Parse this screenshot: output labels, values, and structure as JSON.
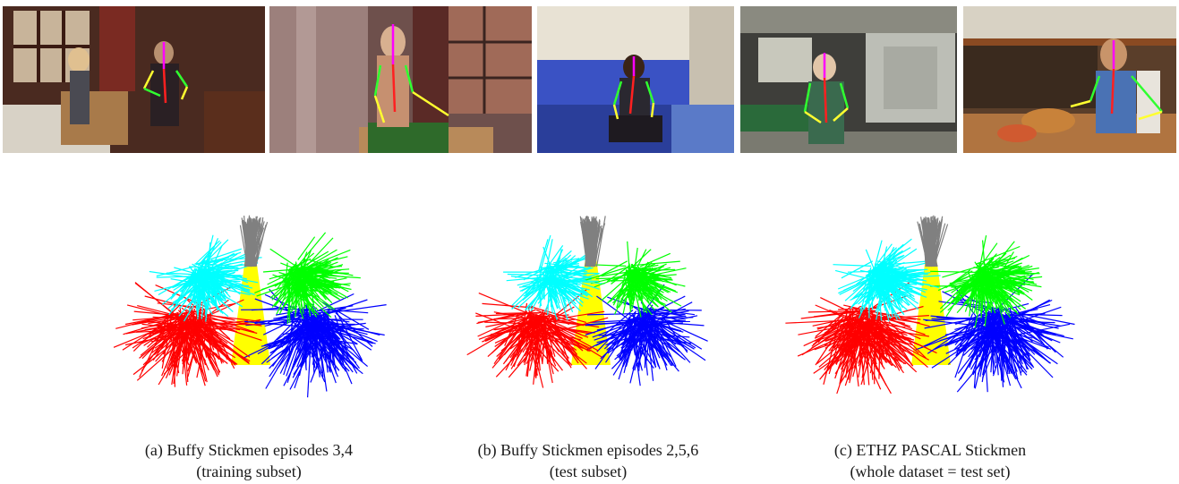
{
  "figure": {
    "photos": [
      {
        "scene": "bedroom with boxes, two women",
        "palette": [
          "#3a1a14",
          "#6b3224",
          "#c9a77a",
          "#e6e0d2"
        ]
      },
      {
        "scene": "woman at window unpacking box",
        "palette": [
          "#4a2a28",
          "#8e6a66",
          "#d8b8a0",
          "#2e5a2a"
        ]
      },
      {
        "scene": "woman on blue sofa",
        "palette": [
          "#2a3a8a",
          "#3e55c0",
          "#d8cfb8",
          "#f4efe0"
        ]
      },
      {
        "scene": "flight attendant in galley",
        "palette": [
          "#3a3a36",
          "#bfc1b8",
          "#2e6a3e",
          "#e8dfc8"
        ]
      },
      {
        "scene": "man cooking in kitchen",
        "palette": [
          "#3a2418",
          "#8a5a30",
          "#c98a4a",
          "#e0d8c8"
        ]
      }
    ],
    "limb_colors": {
      "torso": "#ffff00",
      "head": "#808080",
      "left_upper_arm": "#00ffff",
      "left_lower_arm": "#ff0000",
      "right_upper_arm": "#00ff00",
      "right_lower_arm": "#0000ff"
    },
    "captions": [
      {
        "line1": "(a) Buffy Stickmen episodes 3,4",
        "line2": "(training subset)"
      },
      {
        "line1": "(b) Buffy Stickmen episodes 2,5,6",
        "line2": "(test subset)"
      },
      {
        "line1": "(c) ETHZ PASCAL Stickmen",
        "line2": "(whole dataset = test set)"
      }
    ]
  }
}
